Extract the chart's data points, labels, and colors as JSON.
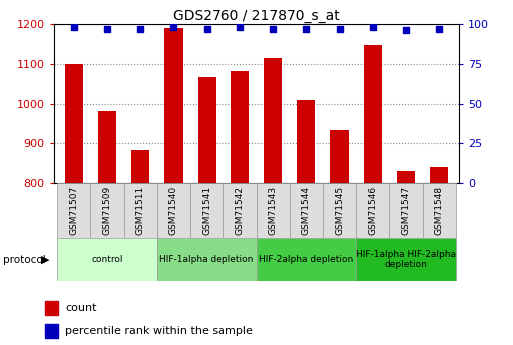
{
  "title": "GDS2760 / 217870_s_at",
  "samples": [
    "GSM71507",
    "GSM71509",
    "GSM71511",
    "GSM71540",
    "GSM71541",
    "GSM71542",
    "GSM71543",
    "GSM71544",
    "GSM71545",
    "GSM71546",
    "GSM71547",
    "GSM71548"
  ],
  "counts": [
    1100,
    980,
    882,
    1190,
    1068,
    1082,
    1115,
    1008,
    932,
    1148,
    830,
    840
  ],
  "percentile_ranks": [
    98,
    97,
    97,
    98,
    97,
    98,
    97,
    97,
    97,
    98,
    96,
    97
  ],
  "ylim_left": [
    800,
    1200
  ],
  "ylim_right": [
    0,
    100
  ],
  "yticks_left": [
    800,
    900,
    1000,
    1100,
    1200
  ],
  "yticks_right": [
    0,
    25,
    50,
    75,
    100
  ],
  "bar_color": "#cc0000",
  "dot_color": "#0000bb",
  "protocol_groups": [
    {
      "label": "control",
      "start": 0,
      "end": 3,
      "color": "#ccffcc"
    },
    {
      "label": "HIF-1alpha depletion",
      "start": 3,
      "end": 6,
      "color": "#88dd88"
    },
    {
      "label": "HIF-2alpha depletion",
      "start": 6,
      "end": 9,
      "color": "#44cc44"
    },
    {
      "label": "HIF-1alpha HIF-2alpha\ndepletion",
      "start": 9,
      "end": 12,
      "color": "#22bb22"
    }
  ],
  "legend_labels": [
    "count",
    "percentile rank within the sample"
  ],
  "legend_colors": [
    "#cc0000",
    "#0000bb"
  ],
  "left_tick_color": "#cc0000",
  "right_tick_color": "#0000bb",
  "grid_color": "#888888",
  "sample_box_color": "#dddddd",
  "sample_box_edge": "#999999"
}
